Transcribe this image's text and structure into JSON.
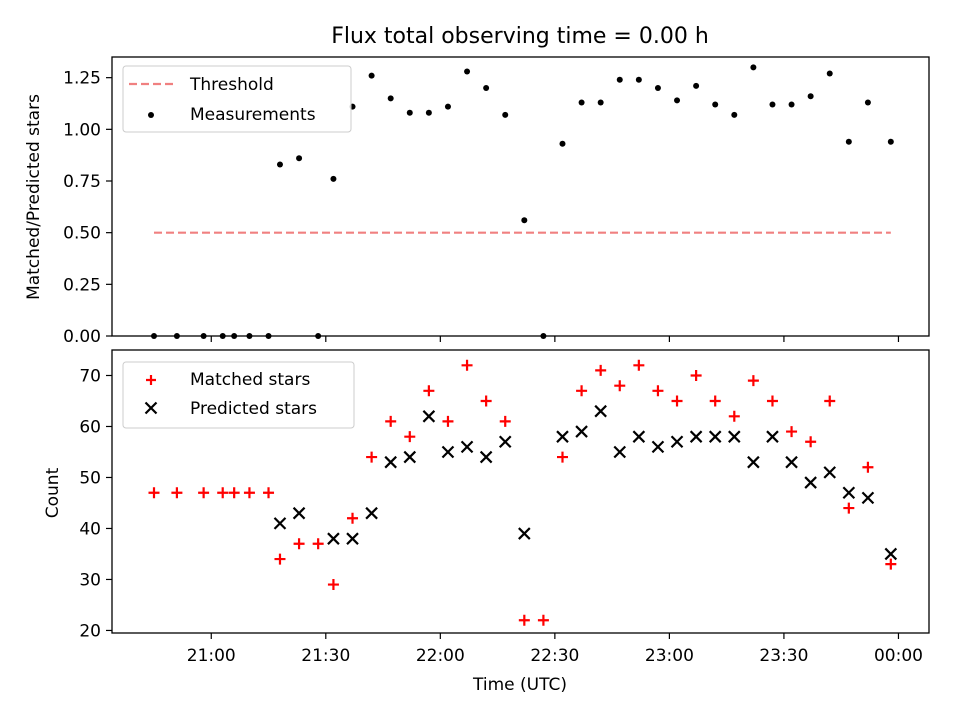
{
  "chart_data": [
    {
      "type": "scatter",
      "title": "Flux total observing time = 0.00 h",
      "ylabel": "Matched/Predicted stars",
      "xlabel": "",
      "xlim": [
        "20:34",
        "00:08"
      ],
      "ylim": [
        0,
        1.35
      ],
      "yticks": [
        0,
        0.25,
        0.5,
        0.75,
        1.0,
        1.25
      ],
      "ytick_labels": [
        "0.00",
        "0.25",
        "0.50",
        "0.75",
        "1.00",
        "1.25"
      ],
      "grid": false,
      "legend": {
        "placement": "top-left",
        "entries": [
          "Threshold",
          "Measurements"
        ]
      },
      "threshold": {
        "name": "Threshold",
        "value": 0.5,
        "x_start": "20:45",
        "x_end": "23:58",
        "color": "#f08080"
      },
      "series": [
        {
          "name": "Measurements",
          "color": "#000000",
          "x": [
            "20:45",
            "20:51",
            "20:58",
            "21:03",
            "21:06",
            "21:10",
            "21:15",
            "21:18",
            "21:23",
            "21:28",
            "21:32",
            "21:37",
            "21:42",
            "21:47",
            "21:52",
            "21:57",
            "22:02",
            "22:07",
            "22:12",
            "22:17",
            "22:22",
            "22:27",
            "22:32",
            "22:37",
            "22:42",
            "22:47",
            "22:52",
            "22:57",
            "23:02",
            "23:07",
            "23:12",
            "23:17",
            "23:22",
            "23:27",
            "23:32",
            "23:37",
            "23:42",
            "23:47",
            "23:52",
            "23:58"
          ],
          "y": [
            0,
            0,
            0,
            0,
            0,
            0,
            0,
            0.83,
            0.86,
            0,
            0.76,
            1.11,
            1.26,
            1.15,
            1.08,
            1.08,
            1.11,
            1.28,
            1.2,
            1.07,
            0.56,
            0,
            0.93,
            1.13,
            1.13,
            1.24,
            1.24,
            1.2,
            1.14,
            1.21,
            1.12,
            1.07,
            1.3,
            1.12,
            1.12,
            1.16,
            1.27,
            0.94,
            1.13,
            0.94
          ]
        }
      ]
    },
    {
      "type": "scatter",
      "title": "",
      "xlabel": "Time (UTC)",
      "ylabel": "Count",
      "xlim": [
        "20:34",
        "00:08"
      ],
      "ylim": [
        19.5,
        75
      ],
      "xticks": [
        "21:00",
        "21:30",
        "22:00",
        "22:30",
        "23:00",
        "23:30",
        "00:00"
      ],
      "yticks": [
        20,
        30,
        40,
        50,
        60,
        70
      ],
      "ytick_labels": [
        "20",
        "30",
        "40",
        "50",
        "60",
        "70"
      ],
      "grid": false,
      "legend": {
        "placement": "top-left",
        "entries": [
          "Matched stars",
          "Predicted stars"
        ]
      },
      "series": [
        {
          "name": "Matched stars",
          "marker": "plus",
          "color": "#ff0000",
          "x": [
            "20:45",
            "20:51",
            "20:58",
            "21:03",
            "21:06",
            "21:10",
            "21:15",
            "21:18",
            "21:23",
            "21:28",
            "21:32",
            "21:37",
            "21:42",
            "21:47",
            "21:52",
            "21:57",
            "22:02",
            "22:07",
            "22:12",
            "22:17",
            "22:22",
            "22:27",
            "22:32",
            "22:37",
            "22:42",
            "22:47",
            "22:52",
            "22:57",
            "23:02",
            "23:07",
            "23:12",
            "23:17",
            "23:22",
            "23:27",
            "23:32",
            "23:37",
            "23:42",
            "23:47",
            "23:52",
            "23:58"
          ],
          "y": [
            47,
            47,
            47,
            47,
            47,
            47,
            47,
            34,
            37,
            37,
            29,
            42,
            54,
            61,
            58,
            67,
            61,
            72,
            65,
            61,
            22,
            22,
            54,
            67,
            71,
            68,
            72,
            67,
            65,
            70,
            65,
            62,
            69,
            65,
            59,
            57,
            65,
            44,
            52,
            33
          ]
        },
        {
          "name": "Predicted stars",
          "marker": "x",
          "color": "#000000",
          "x": [
            "21:18",
            "21:23",
            "21:32",
            "21:37",
            "21:42",
            "21:47",
            "21:52",
            "21:57",
            "22:02",
            "22:07",
            "22:12",
            "22:17",
            "22:22",
            "22:32",
            "22:37",
            "22:42",
            "22:47",
            "22:52",
            "22:57",
            "23:02",
            "23:07",
            "23:12",
            "23:17",
            "23:22",
            "23:27",
            "23:32",
            "23:37",
            "23:42",
            "23:47",
            "23:52",
            "23:58"
          ],
          "y": [
            41,
            43,
            38,
            38,
            43,
            53,
            54,
            62,
            55,
            56,
            54,
            57,
            39,
            58,
            59,
            63,
            55,
            58,
            56,
            57,
            58,
            58,
            58,
            53,
            58,
            53,
            49,
            51,
            47,
            46,
            35
          ]
        }
      ]
    }
  ]
}
